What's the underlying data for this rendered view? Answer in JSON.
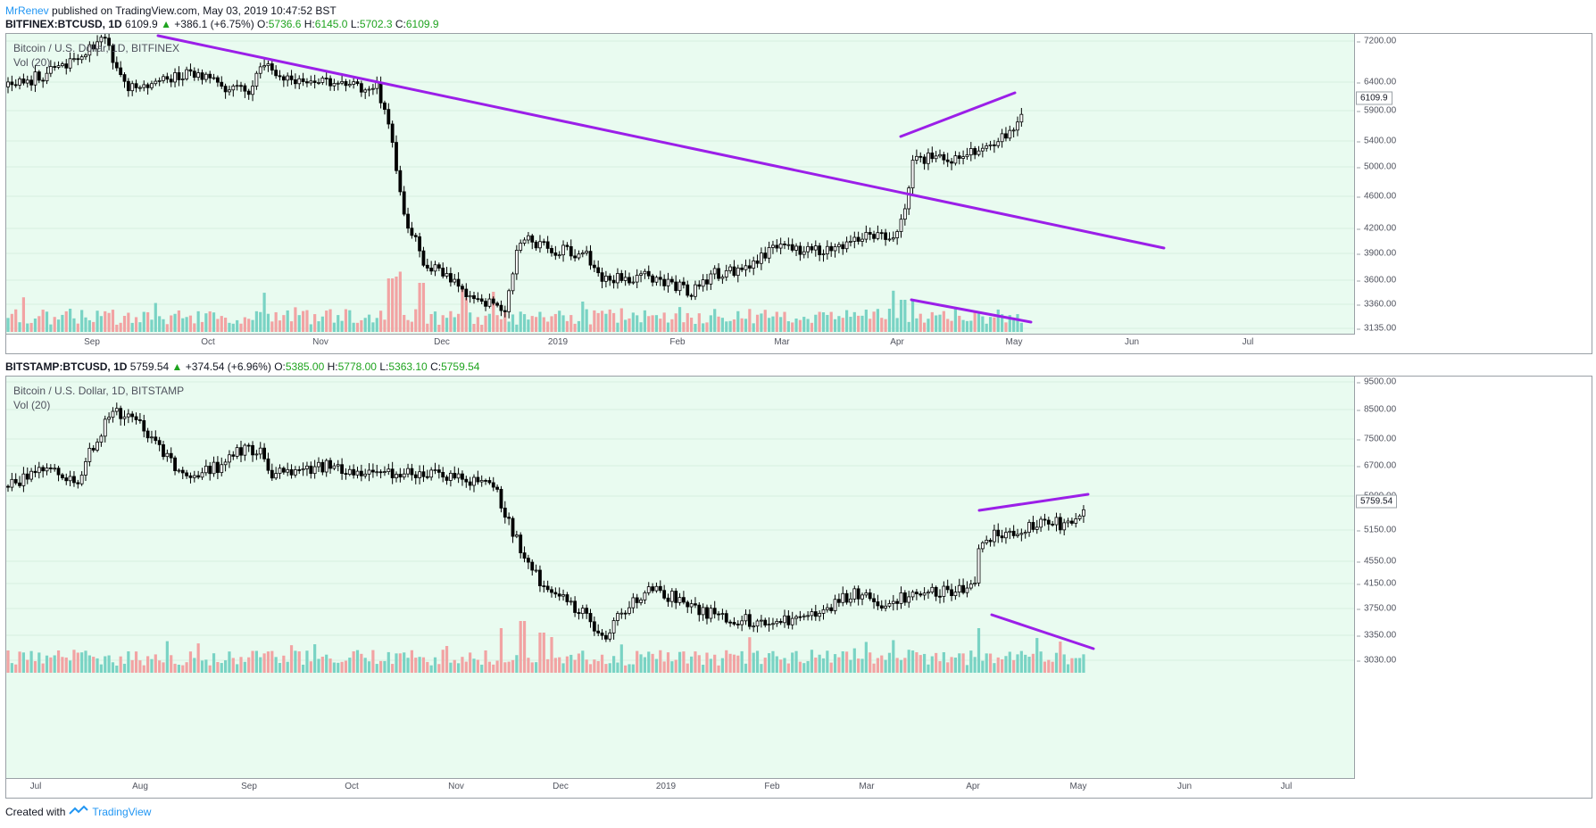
{
  "publish": {
    "author": "MrRenev",
    "text": "published on TradingView.com, May 03, 2019 10:47:52 BST"
  },
  "footer": {
    "created_with": "Created with",
    "brand": "TradingView",
    "logo_icon": "tradingview-logo-icon"
  },
  "colors": {
    "plot_bg": "#e9fbf0",
    "trendline": "#9b1fe8",
    "vol_up": "#79d3c4",
    "vol_down": "#f2a3a3",
    "candle": "#000000",
    "positive": "#1ea31e"
  },
  "charts": [
    {
      "symbol": "BITFINEX:BTCUSD, 1D",
      "last": "6109.9",
      "change": "+386.1 (+6.75%)",
      "o_label": "O:",
      "o": "5736.6",
      "h_label": "H:",
      "h": "6145.0",
      "l_label": "L:",
      "l": "5702.3",
      "c_label": "C:",
      "c": "6109.9",
      "title": "Bitcoin / U.S. Dollar, 1D, BITFINEX",
      "vol_label": "Vol (20)",
      "last_label": "6109.9",
      "y_ticks": [
        "7200.00",
        "6400.00",
        "5900.00",
        "5400.00",
        "5000.00",
        "4600.00",
        "4200.00",
        "3900.00",
        "3600.00",
        "3360.00",
        "3135.00"
      ],
      "x_ticks": [
        "Sep",
        "Oct",
        "Nov",
        "Dec",
        "2019",
        "Feb",
        "Mar",
        "Apr",
        "May",
        "Jun",
        "Jul"
      ],
      "x_range": [
        "2018-08-06",
        "2019-07-29"
      ]
    },
    {
      "symbol": "BITSTAMP:BTCUSD, 1D",
      "last": "5759.54",
      "change": "+374.54 (+6.96%)",
      "o_label": "O:",
      "o": "5385.00",
      "h_label": "H:",
      "h": "5778.00",
      "l_label": "L:",
      "l": "5363.10",
      "c_label": "C:",
      "c": "5759.54",
      "title": "Bitcoin / U.S. Dollar, 1D, BITSTAMP",
      "vol_label": "Vol (20)",
      "last_label": "5759.54",
      "y_ticks": [
        "9500.00",
        "8500.00",
        "7500.00",
        "6700.00",
        "5900.00",
        "5150.00",
        "4550.00",
        "4150.00",
        "3750.00",
        "3350.00",
        "3030.00"
      ],
      "x_ticks": [
        "Jul",
        "Aug",
        "Sep",
        "Oct",
        "Nov",
        "Dec",
        "2019",
        "Feb",
        "Mar",
        "Apr",
        "May",
        "Jun",
        "Jul"
      ],
      "x_range": [
        "2018-06-22",
        "2019-07-29"
      ]
    }
  ]
}
